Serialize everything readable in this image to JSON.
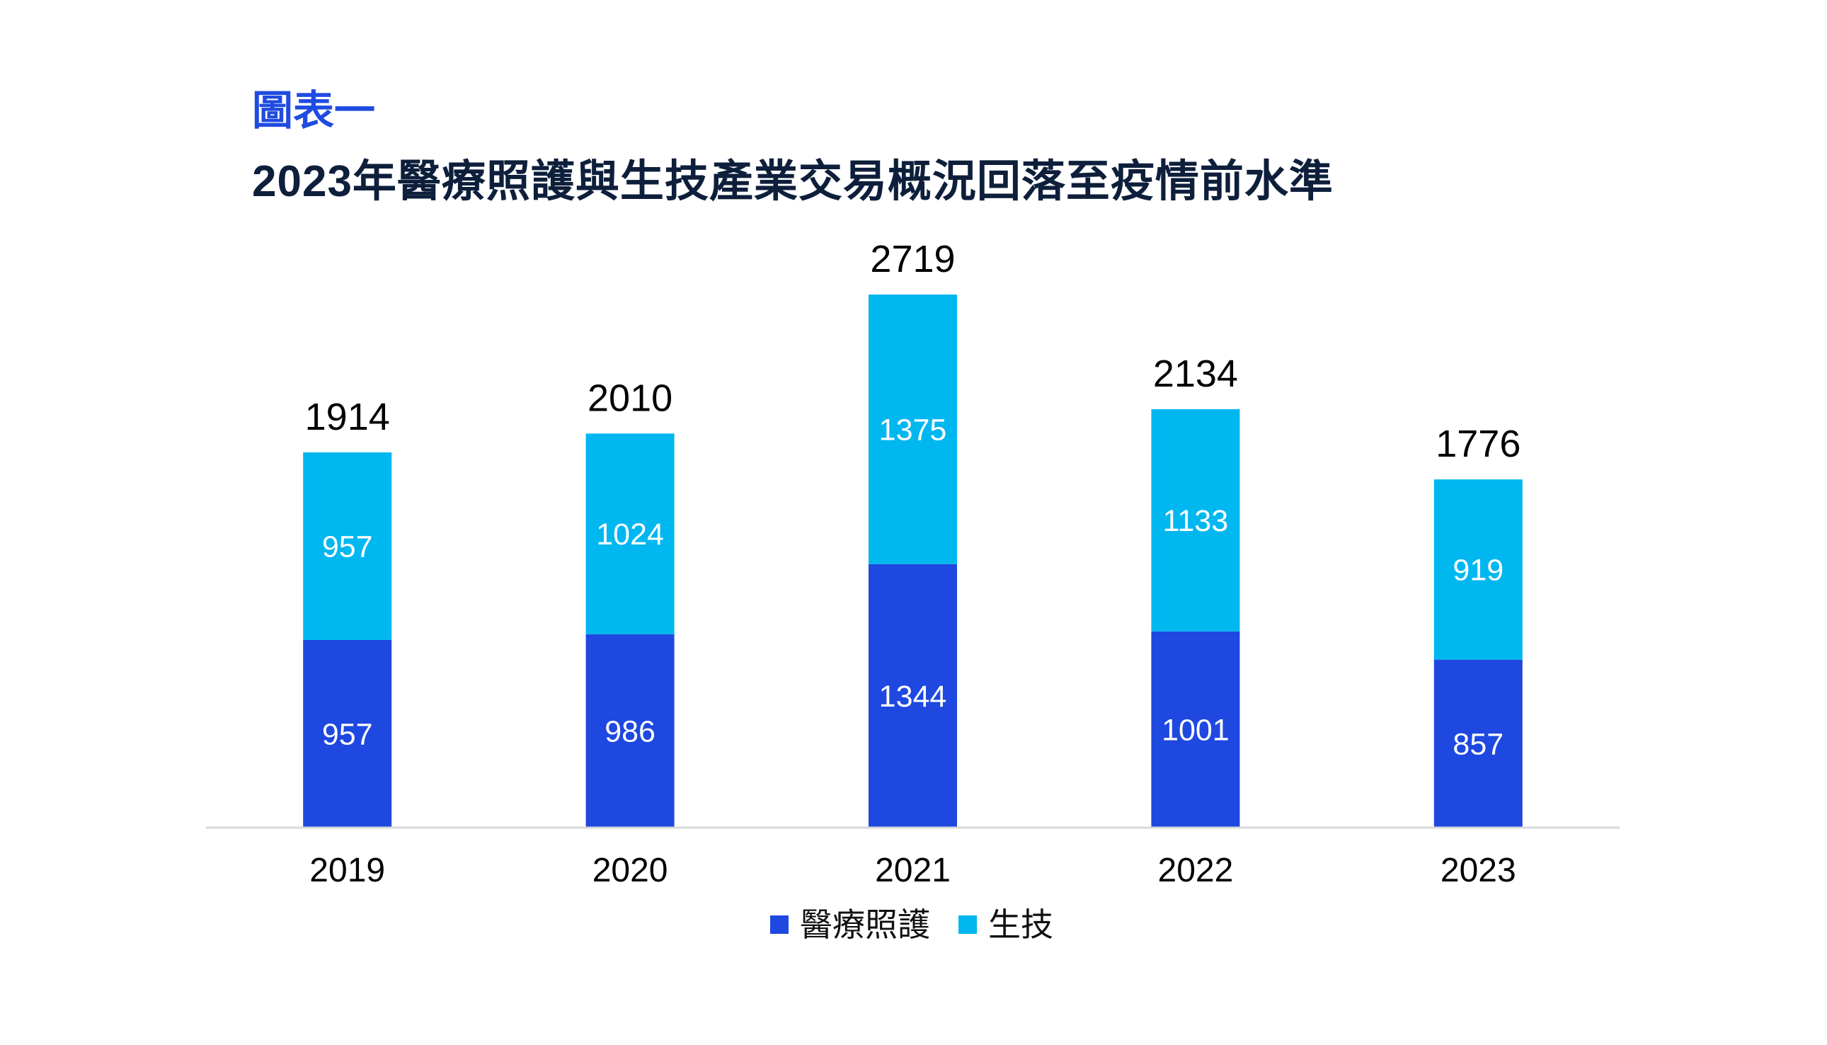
{
  "figure_label": "圖表一",
  "chart_data": {
    "type": "bar",
    "stacked": true,
    "title": "2023年醫療照護與生技產業交易概況回落至疫情前水準",
    "xlabel": "",
    "ylabel": "",
    "categories": [
      "2019",
      "2020",
      "2021",
      "2022",
      "2023"
    ],
    "series": [
      {
        "name": "醫療照護",
        "color": "#1e48e0",
        "values": [
          957,
          986,
          1344,
          1001,
          857
        ]
      },
      {
        "name": "生技",
        "color": "#00b7f0",
        "values": [
          957,
          1024,
          1375,
          1133,
          919
        ]
      }
    ],
    "totals": [
      1914,
      2010,
      2719,
      2134,
      1776
    ],
    "ylim": [
      0,
      2719
    ],
    "grid": false,
    "legend_position": "bottom-center",
    "data_labels": true
  }
}
